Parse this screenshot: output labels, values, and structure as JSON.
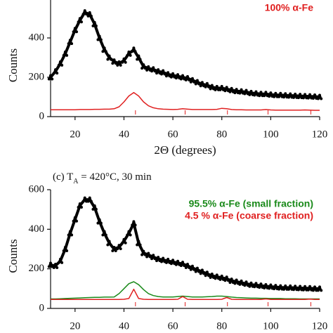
{
  "chart_data": [
    {
      "type": "line",
      "xlabel": "2Θ (degrees)",
      "ylabel": "Counts",
      "xlim": [
        10,
        120
      ],
      "xticks": [
        20,
        40,
        60,
        80,
        100,
        120
      ],
      "ylim": [
        0,
        600
      ],
      "yticks": [
        0,
        200,
        400
      ],
      "x": [
        10,
        12,
        14,
        16,
        18,
        20,
        22,
        24,
        26,
        28,
        30,
        32,
        34,
        36,
        38,
        40,
        42,
        44,
        46,
        48,
        50,
        52,
        54,
        56,
        58,
        60,
        62,
        64,
        66,
        68,
        70,
        72,
        74,
        76,
        78,
        80,
        82,
        84,
        86,
        88,
        90,
        92,
        94,
        96,
        98,
        100,
        102,
        104,
        106,
        108,
        110,
        112,
        114,
        116,
        118,
        120
      ],
      "series": [
        {
          "color": "#000000",
          "style": "dots",
          "values": [
            200,
            230,
            270,
            320,
            380,
            440,
            490,
            530,
            520,
            470,
            400,
            340,
            300,
            280,
            270,
            285,
            320,
            340,
            300,
            255,
            245,
            240,
            230,
            225,
            215,
            210,
            205,
            200,
            195,
            185,
            175,
            165,
            160,
            150,
            145,
            145,
            140,
            135,
            130,
            128,
            125,
            120,
            118,
            115,
            115,
            112,
            110,
            110,
            108,
            107,
            106,
            105,
            104,
            103,
            102,
            100
          ]
        },
        {
          "name": "100% α-Fe",
          "color": "#e02020",
          "style": "line",
          "values": [
            35,
            35,
            35,
            35,
            35,
            35,
            36,
            36,
            36,
            37,
            37,
            38,
            38,
            40,
            50,
            75,
            105,
            122,
            105,
            75,
            55,
            45,
            40,
            38,
            37,
            36,
            37,
            40,
            38,
            36,
            36,
            36,
            36,
            36,
            37,
            42,
            40,
            36,
            35,
            35,
            34,
            34,
            34,
            34,
            36,
            34,
            33,
            33,
            33,
            33,
            33,
            33,
            34,
            33,
            32,
            32
          ]
        }
      ],
      "reflections": [
        44.7,
        65.0,
        82.3,
        98.9,
        116.4
      ],
      "reflections_color": "#e02020"
    },
    {
      "type": "line",
      "title": [
        "(c) T",
        "A",
        " = 420°C, 30 min"
      ],
      "ylabel": "Counts",
      "xlim": [
        10,
        120
      ],
      "xticks": [
        20,
        40,
        60,
        80,
        100,
        120
      ],
      "ylim": [
        0,
        600
      ],
      "yticks": [
        0,
        200,
        400,
        600
      ],
      "x": [
        10,
        12,
        14,
        16,
        18,
        20,
        22,
        24,
        26,
        28,
        30,
        32,
        34,
        36,
        38,
        40,
        42,
        44,
        46,
        48,
        50,
        52,
        54,
        56,
        58,
        60,
        62,
        64,
        66,
        68,
        70,
        72,
        74,
        76,
        78,
        80,
        82,
        84,
        86,
        88,
        90,
        92,
        94,
        96,
        98,
        100,
        102,
        104,
        106,
        108,
        110,
        112,
        114,
        116,
        118,
        120
      ],
      "series": [
        {
          "color": "#000000",
          "style": "dots",
          "values": [
            220,
            215,
            240,
            300,
            380,
            450,
            520,
            550,
            550,
            510,
            440,
            380,
            330,
            300,
            310,
            340,
            380,
            430,
            330,
            280,
            270,
            260,
            250,
            245,
            240,
            235,
            230,
            225,
            215,
            205,
            195,
            185,
            175,
            165,
            160,
            155,
            150,
            140,
            135,
            130,
            125,
            120,
            118,
            115,
            112,
            110,
            108,
            106,
            105,
            105,
            104,
            103,
            102,
            102,
            100,
            100
          ]
        },
        {
          "name": "95.5% α-Fe (small fraction)",
          "color": "#1a8a1a",
          "style": "line",
          "values": [
            48,
            48,
            49,
            50,
            51,
            52,
            53,
            54,
            55,
            56,
            56,
            57,
            57,
            58,
            75,
            100,
            125,
            135,
            120,
            95,
            75,
            65,
            60,
            58,
            58,
            58,
            60,
            62,
            60,
            58,
            58,
            58,
            59,
            60,
            62,
            62,
            60,
            57,
            55,
            54,
            53,
            52,
            52,
            51,
            51,
            50,
            50,
            50,
            49,
            49,
            49,
            48,
            48,
            48,
            48,
            48
          ]
        },
        {
          "name": "4.5 % α-Fe (coarse fraction)",
          "color": "#e02020",
          "style": "line",
          "values": [
            45,
            45,
            45,
            45,
            45,
            45,
            45,
            45,
            45,
            45,
            45,
            45,
            45,
            45,
            45,
            46,
            50,
            97,
            50,
            46,
            45,
            45,
            45,
            45,
            45,
            45,
            46,
            60,
            46,
            45,
            45,
            45,
            45,
            45,
            45,
            46,
            55,
            46,
            45,
            45,
            45,
            45,
            45,
            45,
            48,
            45,
            45,
            45,
            45,
            45,
            45,
            45,
            45,
            47,
            45,
            45
          ]
        }
      ],
      "reflections": [
        44.7,
        65.0,
        82.3,
        98.9,
        116.4
      ],
      "reflections_color": "#e02020"
    }
  ]
}
